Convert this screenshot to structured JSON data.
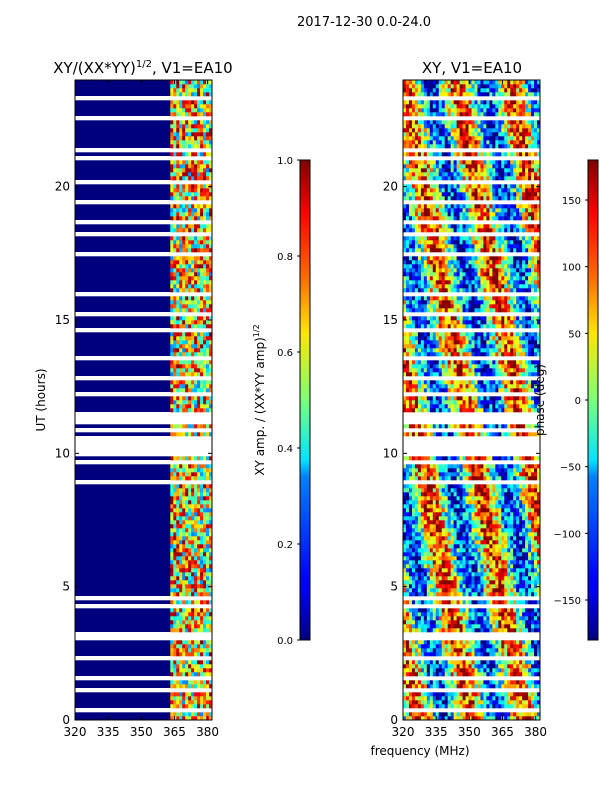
{
  "suptitle": "2017-12-30 0.0-24.0",
  "chart_data": [
    {
      "type": "heatmap",
      "title_prefix": "XY/(XX*YY)",
      "title_exponent": "1/2",
      "title_suffix": ", V1=EA10",
      "xlabel": "",
      "ylabel": "UT (hours)",
      "xlim": [
        320,
        382
      ],
      "ylim": [
        0,
        24
      ],
      "xticks": [
        320,
        335,
        350,
        365,
        380
      ],
      "yticks": [
        0,
        5,
        10,
        15,
        20
      ],
      "colorbar": {
        "label_prefix": "XY amp. / (XX*YY amp)",
        "label_exponent": "1/2",
        "range": [
          0.0,
          1.0
        ],
        "ticks": [
          "0.0",
          "0.2",
          "0.4",
          "0.6",
          "0.8",
          "1.0"
        ],
        "colormap": "jet"
      }
    },
    {
      "type": "heatmap",
      "title": "XY, V1=EA10",
      "xlabel": "frequency (MHz)",
      "ylabel": "",
      "xlim": [
        320,
        382
      ],
      "ylim": [
        0,
        24
      ],
      "xticks": [
        320,
        335,
        350,
        365,
        380
      ],
      "yticks": [
        0,
        5,
        10,
        15,
        20
      ],
      "colorbar": {
        "label": "phase (deg)",
        "range": [
          -180,
          180
        ],
        "ticks": [
          "−150",
          "−100",
          "−50",
          "0",
          "50",
          "100",
          "150"
        ],
        "tick_values": [
          -150,
          -100,
          -50,
          0,
          50,
          100,
          150
        ],
        "colormap": "jet"
      }
    }
  ]
}
